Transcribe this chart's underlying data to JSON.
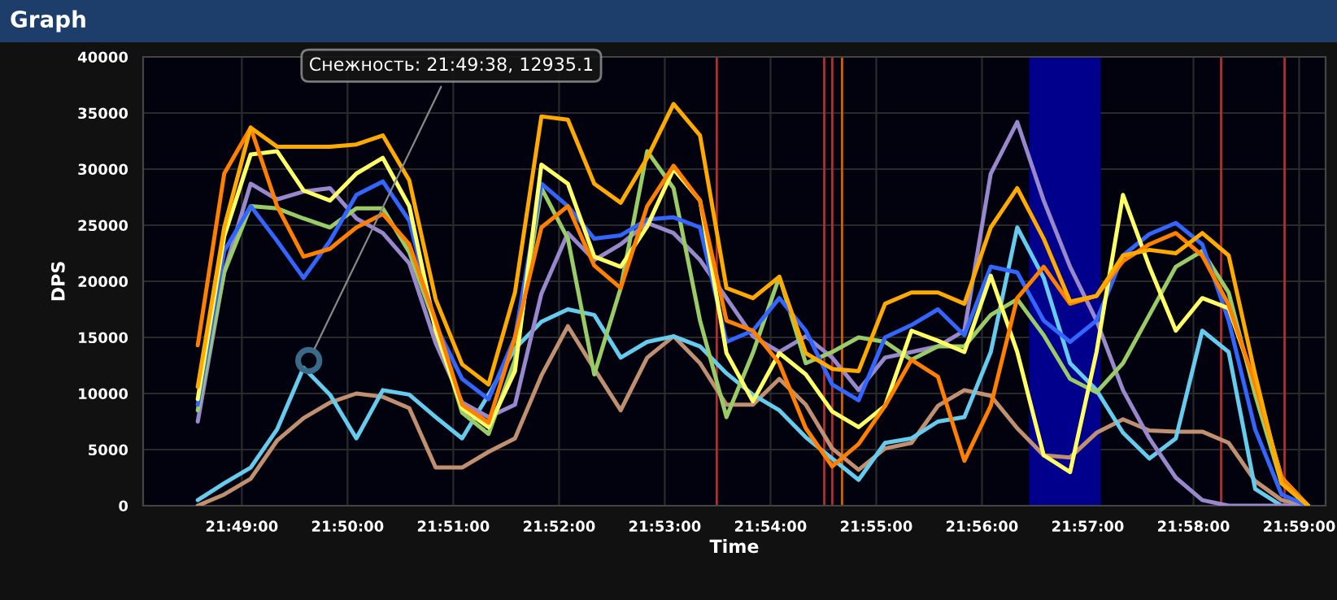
{
  "chart_data": {
    "type": "line",
    "title": "Graph",
    "xlabel": "Time",
    "ylabel": "DPS",
    "x": [
      21.80972,
      21.81389,
      21.81806,
      21.82222,
      21.82639,
      21.83056,
      21.83472,
      21.83889,
      21.84306,
      21.84722,
      21.85139,
      21.85556,
      21.85972,
      21.86389,
      21.86806,
      21.87222,
      21.87639,
      21.88056,
      21.88472,
      21.88889,
      21.89306,
      21.89722,
      21.90139,
      21.90556,
      21.90972,
      21.91389,
      21.91806,
      21.92222,
      21.92639,
      21.93056,
      21.93472,
      21.93889,
      21.94306,
      21.94722,
      21.95139,
      21.95556,
      21.95972,
      21.96389,
      21.96806,
      21.97222,
      21.97639,
      21.98056,
      21.98472
    ],
    "xlim": [
      21.80111,
      21.9875
    ],
    "xticks": [
      {
        "value": 21.81667,
        "label": "21:49:00"
      },
      {
        "value": 21.83333,
        "label": "21:50:00"
      },
      {
        "value": 21.85,
        "label": "21:51:00"
      },
      {
        "value": 21.86667,
        "label": "21:52:00"
      },
      {
        "value": 21.88333,
        "label": "21:53:00"
      },
      {
        "value": 21.9,
        "label": "21:54:00"
      },
      {
        "value": 21.91667,
        "label": "21:55:00"
      },
      {
        "value": 21.93333,
        "label": "21:56:00"
      },
      {
        "value": 21.95,
        "label": "21:57:00"
      },
      {
        "value": 21.96667,
        "label": "21:58:00"
      },
      {
        "value": 21.98333,
        "label": "21:59:00"
      }
    ],
    "ylim": [
      0,
      40000
    ],
    "yticks": [
      0,
      5000,
      10000,
      15000,
      20000,
      25000,
      30000,
      35000,
      40000
    ],
    "grid": true,
    "legend": false,
    "marker": "none",
    "line_style": "solid",
    "series": [
      {
        "color": "#c09070",
        "values": [
          0,
          1000,
          2400,
          5800,
          7800,
          9200,
          10000,
          9700,
          8700,
          3400,
          3400,
          4800,
          6000,
          11600,
          16000,
          12200,
          8500,
          13200,
          15100,
          12700,
          9000,
          9000,
          11300,
          9000,
          5100,
          3200,
          5100,
          5600,
          8900,
          10300,
          9800,
          6900,
          4500,
          4300,
          6500,
          7700,
          6700,
          6600,
          6600,
          5600,
          2200,
          500,
          0
        ]
      },
      {
        "color": "#66ccee",
        "values": [
          500,
          2000,
          3400,
          6800,
          12300,
          9900,
          6000,
          10300,
          9900,
          7900,
          6000,
          9900,
          14000,
          16400,
          17500,
          17000,
          13200,
          14600,
          15100,
          14200,
          11800,
          9900,
          8500,
          6100,
          4200,
          2300,
          5600,
          6000,
          7500,
          7900,
          13700,
          24800,
          20300,
          12700,
          10300,
          6500,
          4200,
          6000,
          15600,
          13700,
          1500,
          0,
          0
        ]
      },
      {
        "color": "#9988cc",
        "values": [
          7500,
          20800,
          28700,
          27300,
          28000,
          28300,
          25600,
          24300,
          21600,
          14500,
          9200,
          7900,
          9000,
          18900,
          24300,
          21900,
          23300,
          25200,
          24300,
          21900,
          18500,
          15100,
          13700,
          15100,
          13200,
          10300,
          13200,
          13700,
          14200,
          15600,
          29600,
          34200,
          27200,
          21300,
          16500,
          10300,
          6000,
          2500,
          500,
          0,
          0,
          0,
          0
        ]
      },
      {
        "color": "#99cc66",
        "values": [
          8500,
          20800,
          26700,
          26500,
          25600,
          24800,
          26500,
          26500,
          22600,
          16000,
          8300,
          6400,
          13000,
          28300,
          23800,
          11700,
          19400,
          31600,
          28300,
          16500,
          7900,
          13600,
          20400,
          12700,
          13700,
          15000,
          14600,
          13000,
          14200,
          14200,
          17000,
          18400,
          15200,
          11300,
          10100,
          12700,
          17000,
          21300,
          22700,
          19000,
          9900,
          2000,
          0
        ]
      },
      {
        "color": "#3366ff",
        "values": [
          9000,
          22700,
          26700,
          23600,
          20300,
          23600,
          27700,
          28900,
          25400,
          16100,
          11300,
          9500,
          15000,
          28700,
          26700,
          23800,
          24100,
          25500,
          25700,
          24800,
          14600,
          15600,
          18500,
          15600,
          10800,
          9400,
          15000,
          16100,
          17500,
          15200,
          21300,
          20800,
          16500,
          14600,
          16500,
          22300,
          24200,
          25200,
          23300,
          16500,
          6800,
          1000,
          0
        ]
      },
      {
        "color": "#ffff66",
        "values": [
          9500,
          24000,
          31300,
          31600,
          28100,
          27200,
          29600,
          31000,
          26700,
          15600,
          8700,
          7000,
          12000,
          30400,
          28700,
          22200,
          21300,
          24900,
          30000,
          27200,
          13600,
          9300,
          13600,
          11700,
          8400,
          7000,
          8900,
          15600,
          14700,
          13700,
          20500,
          13700,
          4500,
          3000,
          13700,
          27700,
          21300,
          15600,
          18500,
          17600,
          10800,
          2500,
          0
        ]
      },
      {
        "color": "#ff7f00",
        "values": [
          14300,
          29600,
          33700,
          26700,
          22200,
          22900,
          24800,
          26000,
          23300,
          16500,
          9000,
          7400,
          15000,
          24800,
          26700,
          21400,
          19400,
          26700,
          30300,
          27200,
          16500,
          15600,
          12700,
          6900,
          3500,
          5500,
          8900,
          13000,
          11500,
          4000,
          8900,
          18500,
          21300,
          18000,
          18700,
          21800,
          23300,
          24300,
          22300,
          17900,
          10800,
          2500,
          0
        ]
      },
      {
        "color": "#ffaa00",
        "values": [
          10600,
          24800,
          33700,
          32000,
          32000,
          32000,
          32200,
          33000,
          29000,
          18400,
          12600,
          10800,
          19000,
          34700,
          34400,
          28700,
          27000,
          31000,
          35800,
          33000,
          19400,
          18500,
          20400,
          13600,
          12200,
          12000,
          18000,
          19000,
          19000,
          18000,
          24800,
          28300,
          23800,
          18200,
          18700,
          22300,
          22800,
          22500,
          24300,
          22300,
          11700,
          2000,
          0
        ]
      }
    ],
    "ref_lines": [
      {
        "axis": "x",
        "value": 21.89153,
        "color": "#b03030"
      },
      {
        "axis": "x",
        "value": 21.90847,
        "color": "#b03030"
      },
      {
        "axis": "x",
        "value": 21.90974,
        "color": "#b03030"
      },
      {
        "axis": "x",
        "value": 21.91128,
        "color": "#d06000"
      },
      {
        "axis": "x",
        "value": 21.97103,
        "color": "#b03030"
      },
      {
        "axis": "x",
        "value": 21.98103,
        "color": "#b03030"
      }
    ],
    "bands": [
      {
        "axis": "x",
        "from": 21.94077,
        "to": 21.95205,
        "color": "#00008c"
      }
    ],
    "annotations": [
      {
        "text": "Снежность: 21:49:38, 12935.1",
        "x": 21.82722,
        "y": 12935.1
      }
    ]
  }
}
